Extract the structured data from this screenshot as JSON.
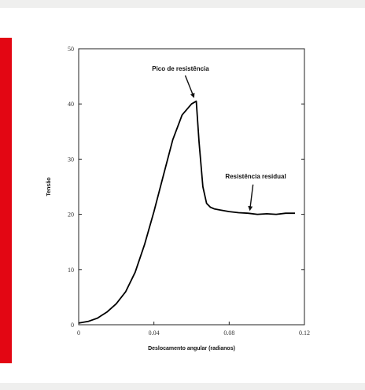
{
  "chart_data": {
    "type": "line",
    "title": "",
    "xlabel": "Deslocamento angular (radianos)",
    "ylabel": "Tensão",
    "xlim": [
      0,
      0.12
    ],
    "ylim": [
      0,
      50
    ],
    "xticks": [
      0,
      0.04,
      0.08,
      0.12
    ],
    "xtick_labels": [
      "0",
      "0.04",
      "0.08",
      "0.12"
    ],
    "yticks": [
      0,
      10,
      20,
      30,
      40,
      50
    ],
    "ytick_labels": [
      "0",
      "10",
      "20",
      "30",
      "40",
      "50"
    ],
    "grid": false,
    "legend": "none",
    "line_color": "#000000",
    "series": [
      {
        "x": [
          0,
          0.005,
          0.01,
          0.015,
          0.02,
          0.025,
          0.03,
          0.035,
          0.04,
          0.045,
          0.05,
          0.055,
          0.06,
          0.0625,
          0.064,
          0.066,
          0.068,
          0.07,
          0.072,
          0.075,
          0.08,
          0.085,
          0.09,
          0.095,
          0.1,
          0.105,
          0.11,
          0.115
        ],
        "y": [
          0.3,
          0.6,
          1.2,
          2.3,
          3.8,
          6.0,
          9.5,
          14.5,
          20.5,
          27.0,
          33.5,
          38.0,
          40.0,
          40.5,
          33.0,
          25.0,
          22.0,
          21.3,
          21.0,
          20.8,
          20.5,
          20.3,
          20.2,
          20.0,
          20.1,
          20.0,
          20.2,
          20.2
        ]
      }
    ],
    "annotations": [
      {
        "text": "Pico de resistência",
        "x": 0.0625,
        "y": 40.5
      },
      {
        "text": "Resistência residual",
        "x": 0.091,
        "y": 20.2
      }
    ]
  }
}
